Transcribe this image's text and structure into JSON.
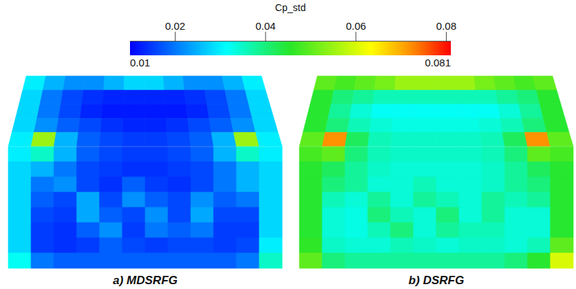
{
  "chart_data": {
    "type": "heatmap",
    "colorbar": {
      "label": "Cp_std",
      "range": [
        0.01,
        0.081
      ],
      "ticks": [
        0.02,
        0.04,
        0.06,
        0.08
      ]
    },
    "panels": [
      {
        "title": "a) MDSRFG",
        "top_cells": [
          [
            0.03,
            0.025,
            0.022,
            0.022,
            0.025,
            0.028,
            0.028,
            0.025,
            0.022,
            0.022,
            0.025,
            0.03
          ],
          [
            0.028,
            0.02,
            0.016,
            0.014,
            0.013,
            0.013,
            0.013,
            0.013,
            0.014,
            0.016,
            0.02,
            0.028
          ],
          [
            0.028,
            0.02,
            0.016,
            0.013,
            0.012,
            0.012,
            0.012,
            0.012,
            0.013,
            0.016,
            0.02,
            0.028
          ],
          [
            0.028,
            0.022,
            0.018,
            0.016,
            0.014,
            0.013,
            0.013,
            0.014,
            0.016,
            0.018,
            0.022,
            0.028
          ],
          [
            0.03,
            0.055,
            0.025,
            0.018,
            0.016,
            0.015,
            0.015,
            0.016,
            0.018,
            0.025,
            0.055,
            0.03
          ]
        ],
        "front_cells": [
          [
            0.03,
            0.035,
            0.025,
            0.018,
            0.016,
            0.015,
            0.015,
            0.016,
            0.018,
            0.025,
            0.035,
            0.03
          ],
          [
            0.028,
            0.025,
            0.02,
            0.016,
            0.015,
            0.014,
            0.014,
            0.015,
            0.016,
            0.02,
            0.025,
            0.028
          ],
          [
            0.028,
            0.02,
            0.022,
            0.016,
            0.014,
            0.018,
            0.015,
            0.014,
            0.016,
            0.02,
            0.025,
            0.028
          ],
          [
            0.028,
            0.018,
            0.016,
            0.024,
            0.016,
            0.022,
            0.018,
            0.016,
            0.022,
            0.018,
            0.02,
            0.028
          ],
          [
            0.028,
            0.016,
            0.015,
            0.024,
            0.018,
            0.016,
            0.022,
            0.016,
            0.024,
            0.016,
            0.016,
            0.028
          ],
          [
            0.028,
            0.015,
            0.014,
            0.018,
            0.022,
            0.015,
            0.02,
            0.018,
            0.02,
            0.015,
            0.015,
            0.028
          ],
          [
            0.028,
            0.015,
            0.014,
            0.015,
            0.018,
            0.016,
            0.015,
            0.016,
            0.016,
            0.015,
            0.016,
            0.03
          ],
          [
            0.032,
            0.02,
            0.018,
            0.018,
            0.018,
            0.018,
            0.018,
            0.018,
            0.018,
            0.018,
            0.02,
            0.035
          ]
        ]
      },
      {
        "title": "b) DSRFG",
        "top_cells": [
          [
            0.05,
            0.048,
            0.05,
            0.052,
            0.055,
            0.055,
            0.055,
            0.055,
            0.052,
            0.05,
            0.048,
            0.05
          ],
          [
            0.045,
            0.04,
            0.038,
            0.036,
            0.036,
            0.036,
            0.036,
            0.036,
            0.036,
            0.038,
            0.04,
            0.045
          ],
          [
            0.045,
            0.038,
            0.034,
            0.032,
            0.032,
            0.032,
            0.032,
            0.032,
            0.032,
            0.034,
            0.038,
            0.045
          ],
          [
            0.045,
            0.04,
            0.036,
            0.034,
            0.033,
            0.033,
            0.033,
            0.033,
            0.034,
            0.036,
            0.04,
            0.045
          ],
          [
            0.05,
            0.072,
            0.042,
            0.036,
            0.035,
            0.035,
            0.035,
            0.035,
            0.036,
            0.042,
            0.072,
            0.05
          ]
        ],
        "front_cells": [
          [
            0.048,
            0.05,
            0.04,
            0.036,
            0.035,
            0.035,
            0.035,
            0.035,
            0.036,
            0.04,
            0.05,
            0.048
          ],
          [
            0.045,
            0.042,
            0.038,
            0.035,
            0.034,
            0.034,
            0.034,
            0.034,
            0.035,
            0.038,
            0.042,
            0.045
          ],
          [
            0.045,
            0.04,
            0.038,
            0.034,
            0.034,
            0.036,
            0.034,
            0.034,
            0.035,
            0.038,
            0.04,
            0.045
          ],
          [
            0.045,
            0.036,
            0.034,
            0.038,
            0.034,
            0.038,
            0.036,
            0.034,
            0.038,
            0.036,
            0.038,
            0.045
          ],
          [
            0.045,
            0.034,
            0.033,
            0.04,
            0.036,
            0.034,
            0.04,
            0.034,
            0.038,
            0.034,
            0.034,
            0.045
          ],
          [
            0.045,
            0.034,
            0.033,
            0.036,
            0.04,
            0.034,
            0.038,
            0.036,
            0.036,
            0.034,
            0.034,
            0.045
          ],
          [
            0.046,
            0.035,
            0.034,
            0.034,
            0.036,
            0.035,
            0.034,
            0.035,
            0.035,
            0.034,
            0.036,
            0.05
          ],
          [
            0.05,
            0.04,
            0.038,
            0.038,
            0.038,
            0.038,
            0.038,
            0.038,
            0.038,
            0.04,
            0.045,
            0.06
          ]
        ]
      }
    ]
  }
}
